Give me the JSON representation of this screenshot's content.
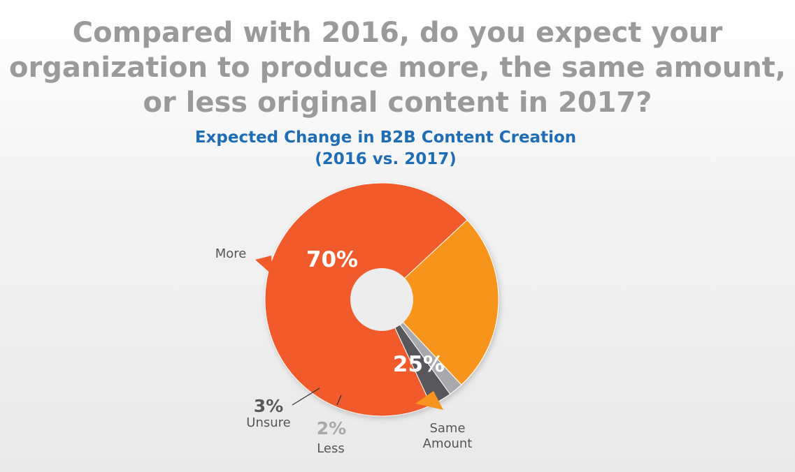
{
  "question": {
    "line1": "Compared with 2016, do you expect your",
    "line2": "organization to produce more, the same amount,",
    "line3": "or less original content in 2017?"
  },
  "chart_data": {
    "type": "pie",
    "title": "Expected Change in B2B Content Creation",
    "subtitle": "(2016 vs. 2017)",
    "donut": true,
    "slices": [
      {
        "label": "More",
        "value": 70,
        "value_label": "70%",
        "color": "#f15a29"
      },
      {
        "label": "Same Amount",
        "value": 25,
        "value_label": "25%",
        "color": "#f7941d"
      },
      {
        "label": "Less",
        "value": 2,
        "value_label": "2%",
        "color": "#a7a9ac"
      },
      {
        "label": "Unsure",
        "value": 3,
        "value_label": "3%",
        "color": "#58595b"
      }
    ]
  }
}
